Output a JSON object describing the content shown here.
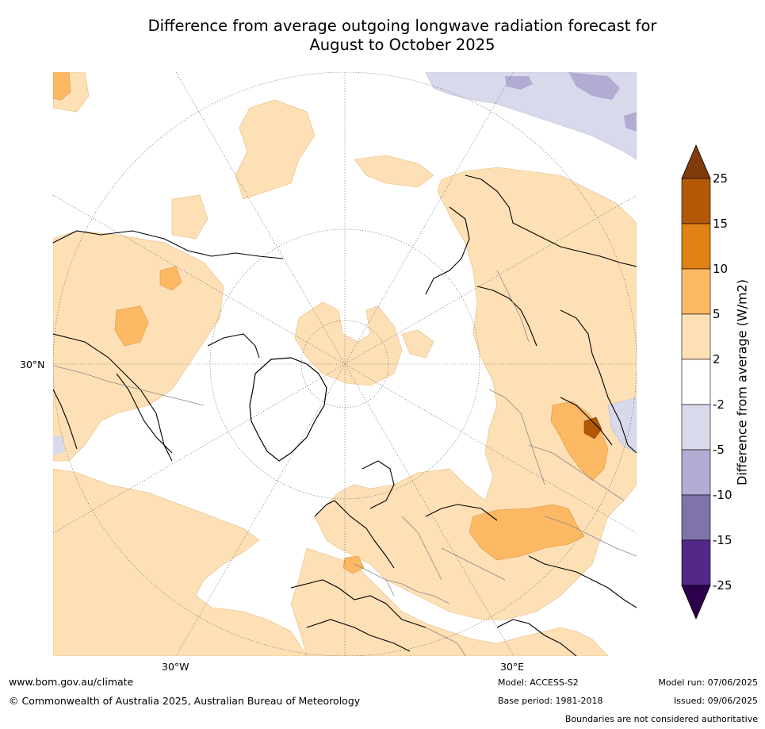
{
  "title_line1": "Difference from average outgoing longwave radiation forecast for",
  "title_line2": "August to October 2025",
  "map": {
    "lat_label": "30°N",
    "lon_labels": [
      "30°W",
      "30°E"
    ]
  },
  "legend": {
    "title": "Difference from average (W/m2)",
    "ticks": [
      "25",
      "15",
      "10",
      "5",
      "2",
      "-2",
      "-5",
      "-10",
      "-15",
      "-25"
    ],
    "colors": [
      "#7f3c0a",
      "#b35806",
      "#e08214",
      "#fdb863",
      "#fee0b6",
      "#ffffff",
      "#d8daeb",
      "#b2abd2",
      "#8073ac",
      "#542788",
      "#2d004b"
    ]
  },
  "footer": {
    "website": "www.bom.gov.au/climate",
    "copyright": "© Commonwealth of Australia 2025, Australian Bureau of Meteorology",
    "model": "Model: ACCESS-S2",
    "base_period": "Base period: 1981-2018",
    "model_run": "Model run: 07/06/2025",
    "issued": "Issued: 09/06/2025",
    "disclaimer": "Boundaries are not considered authoritative"
  }
}
